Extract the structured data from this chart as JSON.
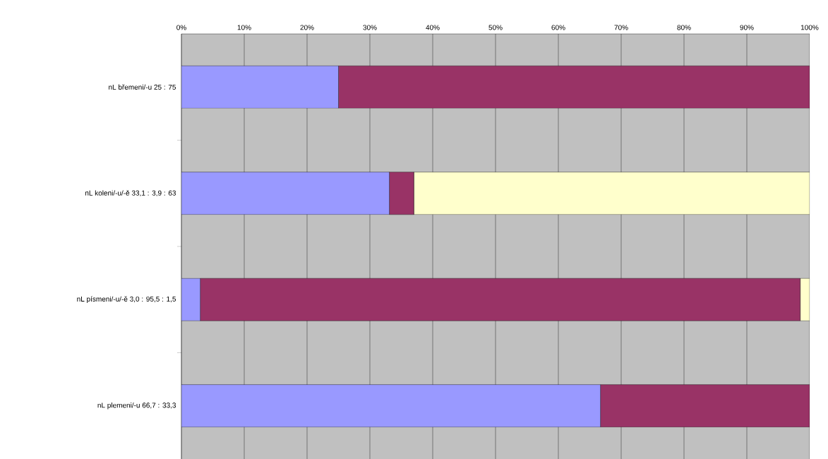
{
  "chart_data": {
    "type": "bar",
    "orientation": "horizontal",
    "stacked": true,
    "categories": [
      "nL břemeni/-u 25 : 75",
      "nL koleni/-u/-ě 33,1 : 3,9 : 63",
      "nL písmeni/-u/-ě 3,0 : 95,5 : 1,5",
      "nL plemeni/-u 66,7 : 33,3"
    ],
    "series": [
      {
        "color": "#9999ff",
        "values": [
          25,
          33.1,
          3.0,
          66.7
        ]
      },
      {
        "color": "#993366",
        "values": [
          75,
          3.9,
          95.5,
          33.3
        ]
      },
      {
        "color": "#ffffcc",
        "values": [
          null,
          63,
          1.5,
          null
        ]
      }
    ],
    "xlim": [
      0,
      100
    ],
    "xticks": [
      {
        "value": 0,
        "label": "0%"
      },
      {
        "value": 10,
        "label": "10%"
      },
      {
        "value": 20,
        "label": "20%"
      },
      {
        "value": 30,
        "label": "30%"
      },
      {
        "value": 40,
        "label": "40%"
      },
      {
        "value": 50,
        "label": "50%"
      },
      {
        "value": 60,
        "label": "60%"
      },
      {
        "value": 70,
        "label": "70%"
      },
      {
        "value": 80,
        "label": "80%"
      },
      {
        "value": 90,
        "label": "90%"
      },
      {
        "value": 100,
        "label": "100%"
      }
    ],
    "grid": "x"
  }
}
